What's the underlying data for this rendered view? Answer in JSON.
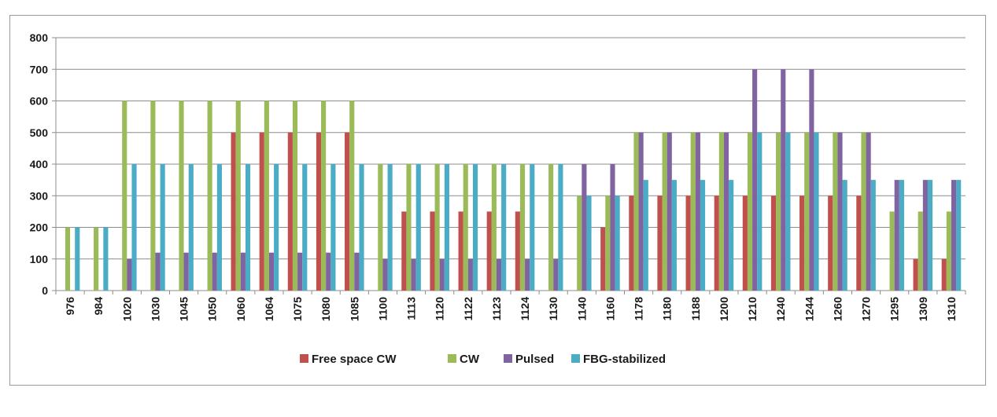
{
  "chart_data": {
    "type": "bar",
    "categories": [
      "976",
      "984",
      "1020",
      "1030",
      "1045",
      "1050",
      "1060",
      "1064",
      "1075",
      "1080",
      "1085",
      "1100",
      "1113",
      "1120",
      "1122",
      "1123",
      "1124",
      "1130",
      "1140",
      "1160",
      "1178",
      "1180",
      "1188",
      "1200",
      "1210",
      "1240",
      "1244",
      "1260",
      "1270",
      "1295",
      "1309",
      "1310"
    ],
    "series": [
      {
        "name": "Free space CW",
        "color": "#c0504d",
        "values": [
          0,
          0,
          0,
          0,
          0,
          0,
          500,
          500,
          500,
          500,
          500,
          0,
          250,
          250,
          250,
          250,
          250,
          0,
          0,
          200,
          300,
          300,
          300,
          300,
          300,
          300,
          300,
          300,
          300,
          0,
          100,
          100
        ]
      },
      {
        "name": "CW",
        "color": "#9bbb59",
        "values": [
          200,
          200,
          600,
          600,
          600,
          600,
          600,
          600,
          600,
          600,
          600,
          400,
          400,
          400,
          400,
          400,
          400,
          400,
          300,
          300,
          500,
          500,
          500,
          500,
          500,
          500,
          500,
          500,
          500,
          250,
          250,
          250
        ]
      },
      {
        "name": "Pulsed",
        "color": "#8064a2",
        "values": [
          0,
          0,
          100,
          120,
          120,
          120,
          120,
          120,
          120,
          120,
          120,
          100,
          100,
          100,
          100,
          100,
          100,
          100,
          400,
          400,
          500,
          500,
          500,
          500,
          700,
          700,
          700,
          500,
          500,
          350,
          350,
          350
        ]
      },
      {
        "name": "FBG-stabilized",
        "color": "#4bacc6",
        "values": [
          200,
          200,
          400,
          400,
          400,
          400,
          400,
          400,
          400,
          400,
          400,
          400,
          400,
          400,
          400,
          400,
          400,
          400,
          300,
          300,
          350,
          350,
          350,
          350,
          500,
          500,
          500,
          350,
          350,
          350,
          350,
          350
        ]
      }
    ],
    "title": "",
    "xlabel": "",
    "ylabel": "",
    "ylim": [
      0,
      800
    ],
    "yticks": [
      0,
      100,
      200,
      300,
      400,
      500,
      600,
      700,
      800
    ],
    "grid": true,
    "legend": "bottom"
  }
}
